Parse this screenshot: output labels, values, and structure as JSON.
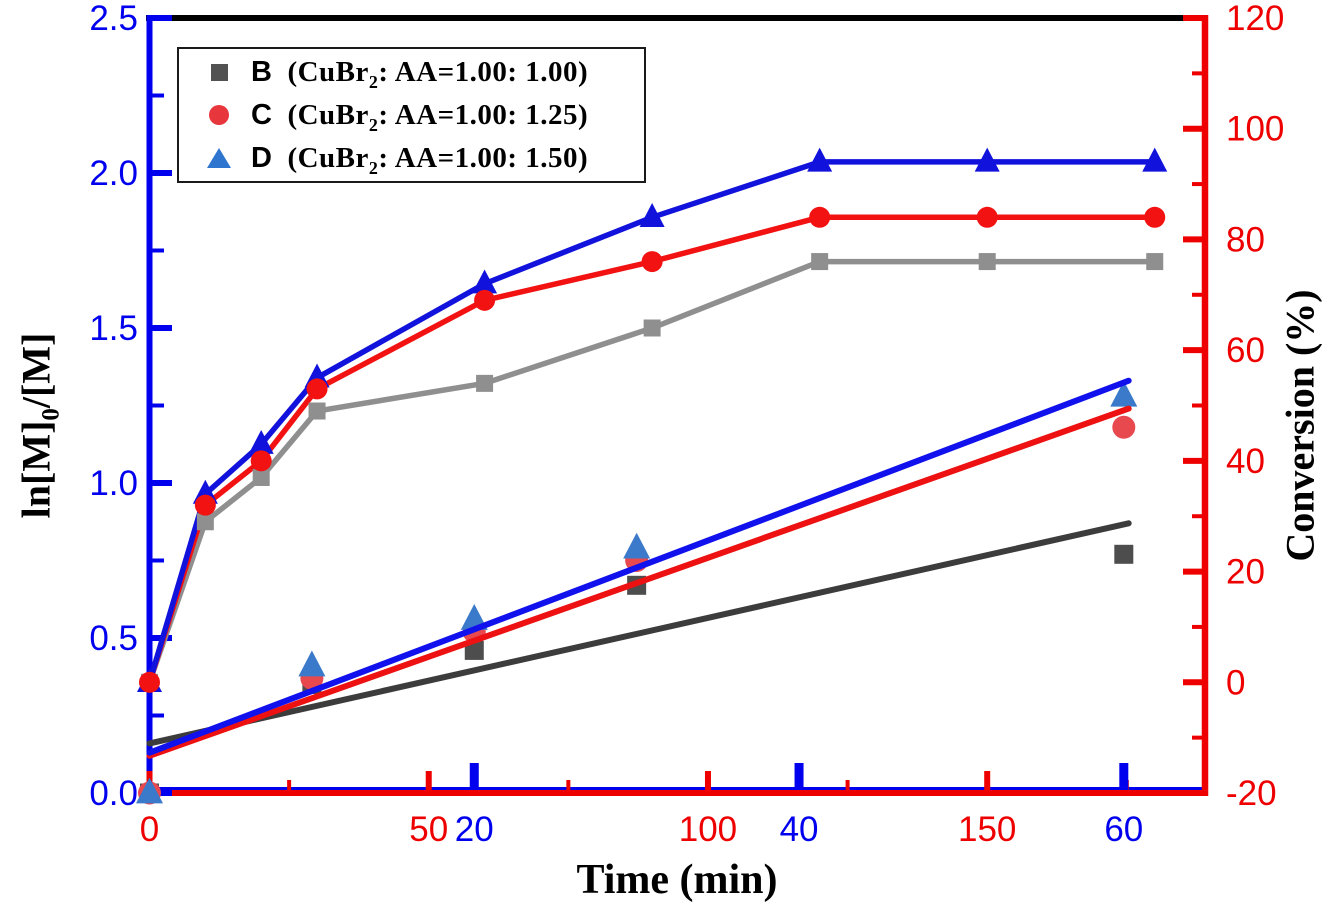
{
  "chart_data": {
    "type": "line",
    "title": "",
    "grid": false,
    "legend_position": "top-left",
    "x_axis": {
      "label": "Time (min)",
      "red_scale": {
        "range": [
          0,
          189
        ],
        "major_ticks": [
          0,
          50,
          100,
          150
        ],
        "minor_ticks": [
          25,
          75,
          125,
          175
        ],
        "color": "#ee0000"
      },
      "blue_scale": {
        "range": [
          0,
          65
        ],
        "major_ticks": [
          20,
          40,
          60
        ],
        "minor_ticks": [],
        "color": "#0000ee"
      }
    },
    "y_left_axis": {
      "label": "ln[M]0/[M]",
      "range": [
        0,
        2.5
      ],
      "major_ticks": [
        0,
        0.5,
        1.0,
        1.5,
        2.0,
        2.5
      ],
      "minor_ticks": [
        0.25,
        0.75,
        1.25,
        1.75,
        2.25
      ],
      "color": "#0000ee"
    },
    "y_right_axis": {
      "label": "Conversion (%)",
      "range": [
        -20,
        120
      ],
      "major_ticks": [
        -20,
        0,
        20,
        40,
        60,
        80,
        100,
        120
      ],
      "minor_ticks": [
        -10,
        10,
        30,
        50,
        70,
        90,
        110
      ],
      "color": "#ee0000"
    },
    "conversion_vs_time": {
      "x_scale": "red",
      "times": [
        0,
        10,
        20,
        30,
        60,
        90,
        120,
        150,
        180
      ],
      "series": [
        {
          "name": "B",
          "marker": "square",
          "color": "#8f8f8f",
          "values": [
            0,
            29,
            37,
            49,
            54,
            64,
            76,
            76,
            76
          ]
        },
        {
          "name": "C",
          "marker": "circle",
          "color": "#f21212",
          "values": [
            0,
            32,
            40,
            53,
            69,
            76,
            84,
            84,
            84
          ]
        },
        {
          "name": "D",
          "marker": "triangle",
          "color": "#1212dd",
          "values": [
            0,
            34,
            43,
            55,
            72,
            84,
            94,
            94,
            94
          ]
        }
      ]
    },
    "ln_M0_M_vs_time": {
      "x_scale": "blue",
      "times": [
        0,
        10,
        20,
        30,
        60
      ],
      "series": [
        {
          "name": "B",
          "marker": "square",
          "color": "#4d4d4d",
          "values": [
            0,
            0.35,
            0.46,
            0.67,
            0.77
          ]
        },
        {
          "name": "C",
          "marker": "circle",
          "color": "#e8494f",
          "values": [
            0,
            0.37,
            0.52,
            0.75,
            1.18
          ]
        },
        {
          "name": "D",
          "marker": "triangle",
          "color": "#3b7aca",
          "values": [
            0,
            0.41,
            0.56,
            0.79,
            1.28
          ]
        }
      ]
    },
    "linear_fits": [
      {
        "name": "B",
        "color": "#3c3c3c",
        "x_blue": [
          0,
          60.3
        ],
        "y": [
          0.16,
          0.87
        ]
      },
      {
        "name": "C",
        "color": "#ee1111",
        "x_blue": [
          0,
          60.3
        ],
        "y": [
          0.12,
          1.24
        ]
      },
      {
        "name": "D",
        "color": "#1111ee",
        "x_blue": [
          0,
          60.3
        ],
        "y": [
          0.13,
          1.33
        ]
      }
    ]
  },
  "figure": {
    "axes": {
      "x_title": "Time (min)",
      "y_left_title": {
        "pre": "ln[M]",
        "sub": "0",
        "post": "/[M]"
      },
      "y_right_title": "Conversion (%)"
    },
    "legend": {
      "items": [
        {
          "letter": "B",
          "pre": "(CuBr",
          "sub": "2",
          "post": ": AA=1.00: 1.00)",
          "marker": "square",
          "marker_color": "#525252"
        },
        {
          "letter": "C",
          "pre": "(CuBr",
          "sub": "2",
          "post": ": AA=1.00: 1.25)",
          "marker": "circle",
          "marker_color": "#e8363d"
        },
        {
          "letter": "D",
          "pre": "(CuBr",
          "sub": "2",
          "post": ": AA=1.00: 1.50)",
          "marker": "triangle",
          "marker_color": "#2e75d0"
        }
      ]
    }
  }
}
